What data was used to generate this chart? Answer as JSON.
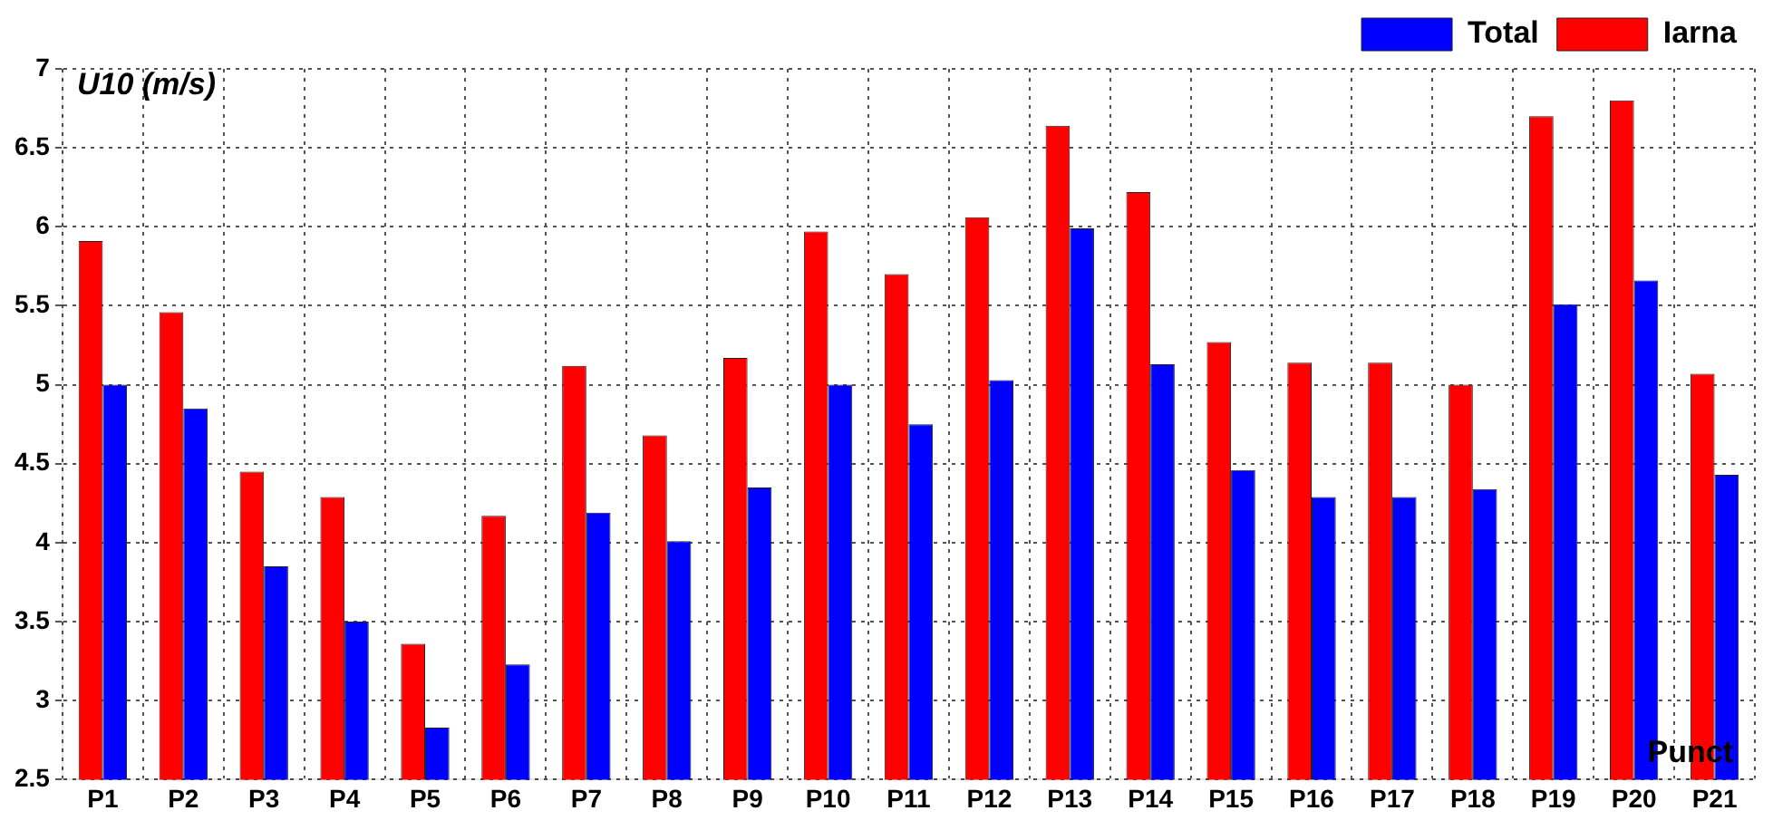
{
  "chart_data": {
    "type": "bar",
    "ylabel": "U10 (m/s)",
    "xlabel": "Punct",
    "categories": [
      "P1",
      "P2",
      "P3",
      "P4",
      "P5",
      "P6",
      "P7",
      "P8",
      "P9",
      "P10",
      "P11",
      "P12",
      "P13",
      "P14",
      "P15",
      "P16",
      "P17",
      "P18",
      "P19",
      "P20",
      "P21"
    ],
    "series": [
      {
        "name": "Iarna",
        "color": "#ff0000",
        "values": [
          5.91,
          5.46,
          4.45,
          4.29,
          3.36,
          4.17,
          5.12,
          4.68,
          5.17,
          5.97,
          5.7,
          6.06,
          6.64,
          6.22,
          5.27,
          5.14,
          5.14,
          5.0,
          6.7,
          6.8,
          5.07
        ]
      },
      {
        "name": "Total",
        "color": "#0000ff",
        "values": [
          5.0,
          4.85,
          3.85,
          3.5,
          2.83,
          3.23,
          4.19,
          4.01,
          4.35,
          5.0,
          4.75,
          5.03,
          5.99,
          5.13,
          4.46,
          4.29,
          4.29,
          4.34,
          5.51,
          5.66,
          4.43
        ]
      }
    ],
    "ylim": [
      2.5,
      7
    ],
    "yticks": [
      2.5,
      3,
      3.5,
      4,
      4.5,
      5,
      5.5,
      6,
      6.5,
      7
    ],
    "grid": true,
    "legend": "top right"
  }
}
